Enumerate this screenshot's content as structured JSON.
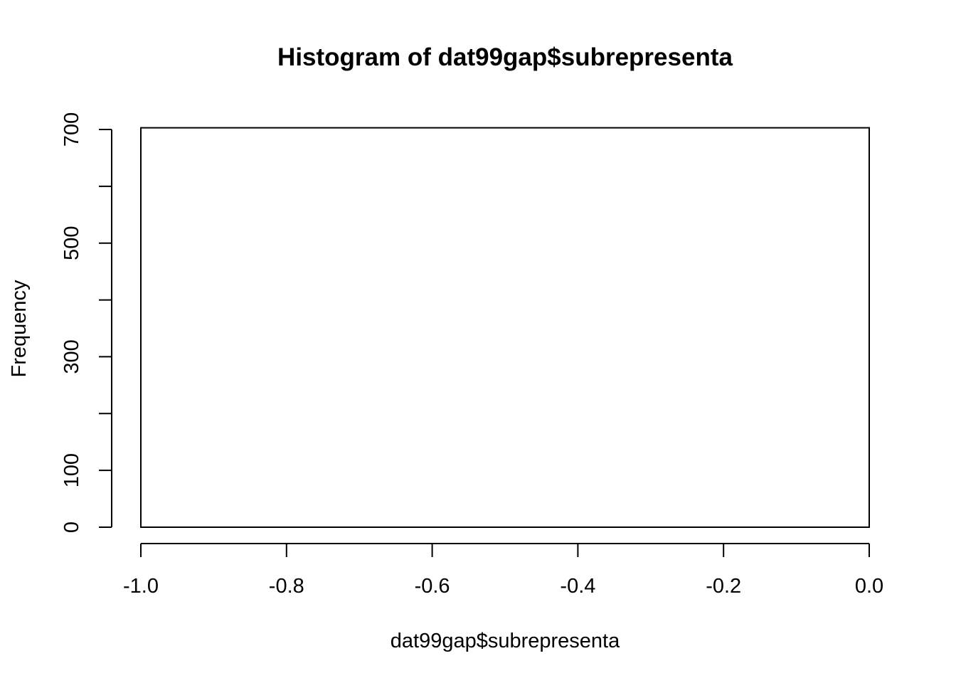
{
  "chart_data": {
    "type": "bar",
    "title": "Histogram of dat99gap$subrepresenta",
    "xlabel": "dat99gap$subrepresenta",
    "ylabel": "Frequency",
    "bins": [
      {
        "x0": -1.0,
        "x1": 0.0,
        "count": 703
      }
    ],
    "xlim": [
      -1.0,
      0.0
    ],
    "ylim": [
      0,
      700
    ],
    "x_ticks": [
      -1.0,
      -0.8,
      -0.6,
      -0.4,
      -0.2,
      0.0
    ],
    "x_tick_labels": [
      "-1.0",
      "-0.8",
      "-0.6",
      "-0.4",
      "-0.2",
      "0.0"
    ],
    "y_ticks": [
      0,
      100,
      200,
      300,
      400,
      500,
      600,
      700
    ],
    "y_tick_labels": [
      "0",
      "100",
      "",
      "300",
      "",
      "500",
      "",
      "700"
    ],
    "bar_fill": "#ffffff",
    "bar_stroke": "#000000",
    "grid": false,
    "legend": "none"
  }
}
